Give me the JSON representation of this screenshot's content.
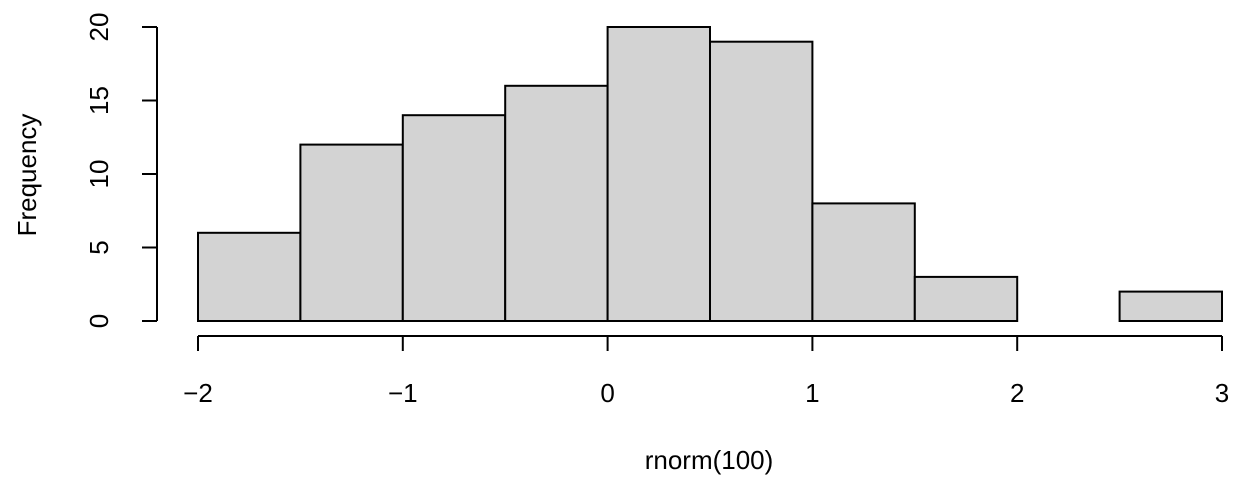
{
  "chart_data": {
    "type": "bar",
    "title": "",
    "xlabel": "rnorm(100)",
    "ylabel": "Frequency",
    "bins": [
      {
        "x0": -2.0,
        "x1": -1.5,
        "count": 6
      },
      {
        "x0": -1.5,
        "x1": -1.0,
        "count": 12
      },
      {
        "x0": -1.0,
        "x1": -0.5,
        "count": 14
      },
      {
        "x0": -0.5,
        "x1": 0.0,
        "count": 16
      },
      {
        "x0": 0.0,
        "x1": 0.5,
        "count": 20
      },
      {
        "x0": 0.5,
        "x1": 1.0,
        "count": 19
      },
      {
        "x0": 1.0,
        "x1": 1.5,
        "count": 8
      },
      {
        "x0": 1.5,
        "x1": 2.0,
        "count": 3
      },
      {
        "x0": 2.0,
        "x1": 2.5,
        "count": 0
      },
      {
        "x0": 2.5,
        "x1": 3.0,
        "count": 2
      }
    ],
    "x_ticks": [
      -2,
      -1,
      0,
      1,
      2,
      3
    ],
    "x_tick_labels": [
      "−2",
      "−1",
      "0",
      "1",
      "2",
      "3"
    ],
    "y_ticks": [
      0,
      5,
      10,
      15,
      20
    ],
    "y_tick_labels": [
      "0",
      "5",
      "10",
      "15",
      "20"
    ],
    "xlim": [
      -2,
      3
    ],
    "ylim": [
      0,
      20
    ],
    "grid": false,
    "legend": "none",
    "bar_fill": "#d3d3d3",
    "bar_stroke": "#000000"
  }
}
